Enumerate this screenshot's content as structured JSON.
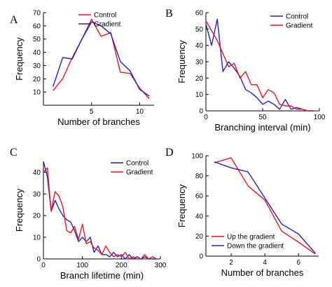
{
  "chart_data": [
    {
      "panel": "A",
      "type": "line",
      "xlabel": "Number of branches",
      "ylabel": "Frequency",
      "xlim": [
        0,
        11.5
      ],
      "ylim": [
        0,
        70
      ],
      "xticks": [
        5,
        10
      ],
      "yticks": [
        10,
        20,
        30,
        40,
        50,
        60,
        70
      ],
      "legend": "top-right",
      "series": [
        {
          "name": "Control",
          "color": "#e8171f",
          "x": [
            1,
            2,
            3,
            4,
            5,
            6,
            7,
            8,
            9,
            10,
            11
          ],
          "y": [
            11,
            20,
            36,
            50,
            65,
            52,
            55,
            25,
            24,
            13,
            5
          ]
        },
        {
          "name": "Gradient",
          "color": "#1f23c8",
          "x": [
            1,
            2,
            3,
            4,
            5,
            6,
            7,
            8,
            9,
            10,
            11
          ],
          "y": [
            14,
            36,
            35,
            50,
            63,
            60,
            54,
            33,
            26,
            12,
            7
          ]
        }
      ]
    },
    {
      "panel": "B",
      "type": "line",
      "xlabel": "Branching interval (min)",
      "ylabel": "Frequency",
      "xlim": [
        0,
        100
      ],
      "ylim": [
        0,
        60
      ],
      "xticks": [
        0,
        50,
        100
      ],
      "yticks": [
        0,
        10,
        20,
        30,
        40,
        50,
        60
      ],
      "legend": "top-right",
      "series": [
        {
          "name": "Control",
          "color": "#1f23c8",
          "x": [
            0,
            5,
            10,
            15,
            20,
            25,
            30,
            35,
            40,
            45,
            50,
            55,
            60,
            65,
            70,
            75,
            80,
            85,
            90,
            95
          ],
          "y": [
            53,
            40,
            56,
            24,
            30,
            26,
            21,
            13,
            11,
            8,
            4,
            6,
            4,
            1,
            7,
            1,
            2,
            1,
            0,
            0
          ]
        },
        {
          "name": "Gradient",
          "color": "#e8171f",
          "x": [
            0,
            5,
            10,
            15,
            20,
            25,
            30,
            35,
            40,
            45,
            50,
            55,
            60,
            65,
            70,
            75,
            80,
            85,
            90,
            95
          ],
          "y": [
            55,
            49,
            43,
            35,
            27,
            29,
            20,
            24,
            16,
            16,
            8,
            13,
            11,
            4,
            3,
            3,
            1,
            1,
            0,
            0
          ]
        }
      ]
    },
    {
      "panel": "C",
      "type": "line",
      "xlabel": "Branch lifetime (min)",
      "ylabel": "Frequency",
      "xlim": [
        0,
        300
      ],
      "ylim": [
        0,
        45
      ],
      "xticks": [
        0,
        100,
        200,
        300
      ],
      "yticks": [
        0,
        10,
        20,
        30,
        40
      ],
      "legend": "top-right",
      "series": [
        {
          "name": "Control",
          "color": "#1f23c8",
          "x": [
            0,
            10,
            20,
            30,
            40,
            50,
            60,
            70,
            80,
            90,
            100,
            110,
            120,
            130,
            140,
            150,
            160,
            170,
            180,
            190,
            200,
            210,
            220,
            230,
            240,
            250,
            260,
            270,
            280,
            290
          ],
          "y": [
            45,
            38,
            22,
            27,
            23,
            20,
            18,
            17,
            13,
            8,
            10,
            8,
            10,
            3,
            6,
            2,
            2,
            1,
            3,
            1,
            2,
            0,
            2,
            0,
            1,
            0,
            1,
            0,
            0,
            0
          ]
        },
        {
          "name": "Gradient",
          "color": "#e8171f",
          "x": [
            0,
            10,
            20,
            30,
            40,
            50,
            60,
            70,
            80,
            90,
            100,
            110,
            120,
            130,
            140,
            150,
            160,
            170,
            180,
            190,
            200,
            210,
            220,
            230,
            240,
            250,
            260,
            270,
            280,
            290
          ],
          "y": [
            40,
            42,
            22,
            31,
            29,
            24,
            13,
            12,
            15,
            9,
            16,
            7,
            8,
            5,
            4,
            2,
            6,
            3,
            1,
            2,
            1,
            3,
            0,
            1,
            0,
            0,
            2,
            0,
            1,
            0
          ]
        }
      ]
    },
    {
      "panel": "D",
      "type": "line",
      "xlabel": "Number of branches",
      "ylabel": "Frequency",
      "xlim": [
        0.5,
        7.2
      ],
      "ylim": [
        0,
        100
      ],
      "xticks": [
        2,
        4,
        6
      ],
      "yticks": [
        0,
        20,
        40,
        60,
        80,
        100
      ],
      "legend": "bottom-left",
      "series": [
        {
          "name": "Up the gradient",
          "color": "#e8171f",
          "x": [
            1,
            2,
            3,
            4,
            5,
            6,
            7
          ],
          "y": [
            93,
            98,
            70,
            56,
            25,
            14,
            2
          ]
        },
        {
          "name": "Down the gradient",
          "color": "#1f23c8",
          "x": [
            1,
            2,
            3,
            4,
            5,
            6,
            7
          ],
          "y": [
            94,
            88,
            84,
            58,
            32,
            22,
            3
          ]
        }
      ]
    }
  ]
}
